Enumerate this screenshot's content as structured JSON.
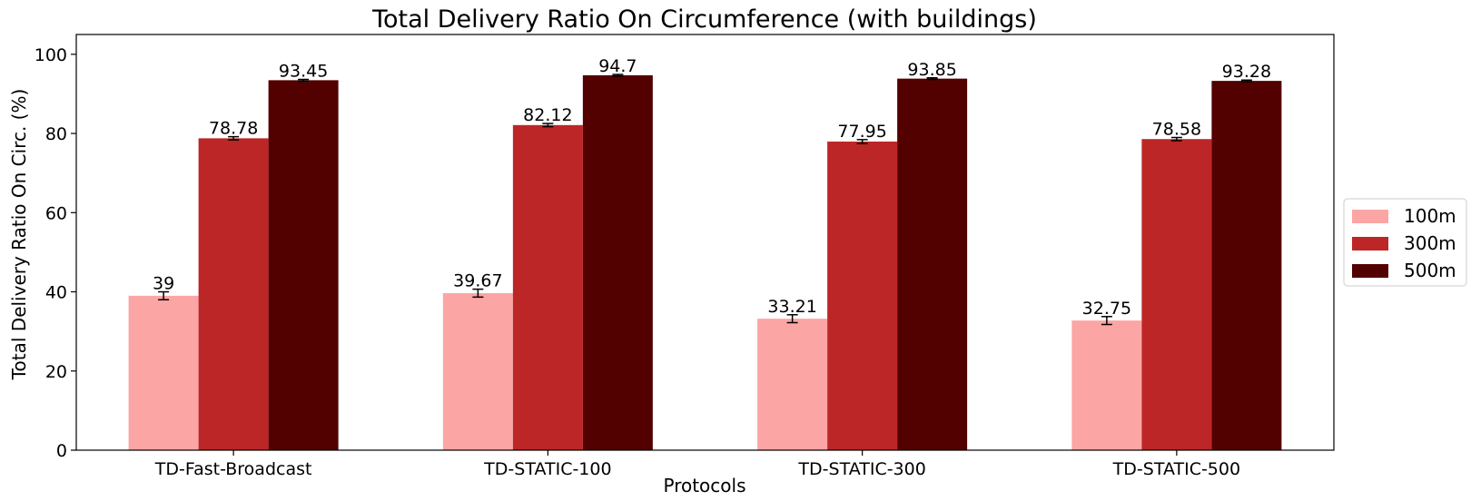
{
  "chart_data": {
    "type": "bar",
    "title": "Total Delivery Ratio On Circumference (with buildings)",
    "xlabel": "Protocols",
    "ylabel": "Total Delivery Ratio On Circ. (%)",
    "ylim": [
      0,
      105
    ],
    "yticks": [
      0,
      20,
      40,
      60,
      80,
      100
    ],
    "grid": false,
    "legend_position": "center-right-outside",
    "categories": [
      "TD-Fast-Broadcast",
      "TD-STATIC-100",
      "TD-STATIC-300",
      "TD-STATIC-500"
    ],
    "series": [
      {
        "name": "100m",
        "color": "#fca5a5",
        "values": [
          39,
          39.67,
          33.21,
          32.75
        ],
        "labels": [
          "39",
          "39.67",
          "33.21",
          "32.75"
        ],
        "errors": [
          1.0,
          1.0,
          1.0,
          1.0
        ]
      },
      {
        "name": "300m",
        "color": "#bd2626",
        "values": [
          78.78,
          82.12,
          77.95,
          78.58
        ],
        "labels": [
          "78.78",
          "82.12",
          "77.95",
          "78.58"
        ],
        "errors": [
          0.4,
          0.4,
          0.5,
          0.4
        ]
      },
      {
        "name": "500m",
        "color": "#520000",
        "values": [
          93.45,
          94.7,
          93.85,
          93.28
        ],
        "labels": [
          "93.45",
          "94.7",
          "93.85",
          "93.28"
        ],
        "errors": [
          0.2,
          0.2,
          0.2,
          0.2
        ]
      }
    ]
  }
}
